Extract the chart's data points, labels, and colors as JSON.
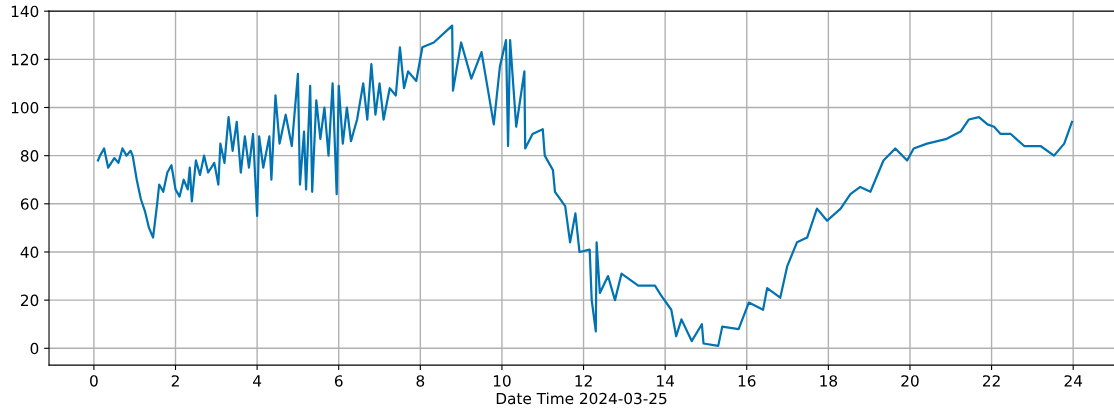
{
  "chart_data": {
    "type": "line",
    "xlabel": "Date Time 2024-03-25",
    "xlim": [
      -1.1,
      25
    ],
    "xticks": [
      0,
      2,
      4,
      6,
      8,
      10,
      12,
      14,
      16,
      18,
      20,
      22,
      24
    ],
    "ylim": [
      -7,
      140
    ],
    "yticks": [
      0,
      20,
      40,
      60,
      80,
      100,
      120,
      140
    ],
    "grid": true,
    "marker": "none",
    "line_style": "solid",
    "series": [
      {
        "color": "#0173b2",
        "x": [
          0.1,
          0.15,
          0.25,
          0.35,
          0.5,
          0.6,
          0.7,
          0.8,
          0.9,
          0.95,
          1.05,
          1.15,
          1.25,
          1.35,
          1.45,
          1.55,
          1.6,
          1.7,
          1.8,
          1.9,
          2.0,
          2.1,
          2.2,
          2.3,
          2.35,
          2.4,
          2.5,
          2.6,
          2.7,
          2.8,
          2.95,
          3.05,
          3.1,
          3.2,
          3.3,
          3.4,
          3.5,
          3.6,
          3.7,
          3.8,
          3.9,
          4.0,
          4.05,
          4.15,
          4.3,
          4.35,
          4.45,
          4.55,
          4.7,
          4.85,
          5.0,
          5.05,
          5.15,
          5.2,
          5.3,
          5.35,
          5.45,
          5.55,
          5.65,
          5.75,
          5.85,
          5.95,
          6.0,
          6.1,
          6.2,
          6.3,
          6.45,
          6.6,
          6.7,
          6.8,
          6.9,
          7.0,
          7.1,
          7.25,
          7.4,
          7.5,
          7.6,
          7.7,
          7.9,
          8.05,
          8.33,
          8.78,
          8.8,
          9.0,
          9.25,
          9.5,
          9.8,
          9.95,
          10.1,
          10.15,
          10.2,
          10.35,
          10.55,
          10.57,
          10.75,
          11.0,
          11.05,
          11.25,
          11.3,
          11.55,
          11.67,
          11.8,
          11.9,
          12.15,
          12.2,
          12.3,
          12.32,
          12.4,
          12.6,
          12.77,
          12.93,
          13.34,
          13.75,
          13.9,
          14.15,
          14.27,
          14.4,
          14.65,
          14.9,
          14.94,
          15.3,
          15.4,
          15.8,
          16.05,
          16.4,
          16.5,
          16.82,
          16.99,
          17.23,
          17.48,
          17.72,
          17.97,
          18.3,
          18.54,
          18.78,
          19.03,
          19.35,
          19.64,
          19.93,
          20.09,
          20.42,
          20.9,
          21.24,
          21.44,
          21.69,
          21.9,
          22.06,
          22.22,
          22.47,
          22.8,
          23.2,
          23.53,
          23.78,
          23.97
        ],
        "values": [
          78,
          80,
          83,
          75,
          79,
          77,
          83,
          80,
          82,
          80,
          70,
          62,
          57,
          50,
          46,
          60,
          68,
          65,
          73,
          76,
          66,
          63,
          70,
          66,
          75,
          61,
          78,
          72,
          80,
          73,
          77,
          68,
          85,
          77,
          96,
          82,
          94,
          73,
          88,
          75,
          89,
          55,
          88,
          75,
          88,
          70,
          105,
          85,
          97,
          84,
          114,
          68,
          90,
          66,
          109,
          65,
          103,
          87,
          100,
          80,
          110,
          64,
          109,
          85,
          100,
          86,
          95,
          110,
          95,
          118,
          97,
          110,
          95,
          108,
          105,
          125,
          108,
          115,
          111,
          125,
          127,
          134,
          107,
          127,
          112,
          123,
          93,
          117,
          128,
          84,
          128,
          92,
          115,
          83,
          89,
          91,
          80,
          74,
          65,
          59,
          44,
          56,
          40,
          41,
          20,
          7,
          44,
          23,
          30,
          20,
          31,
          26,
          26,
          22,
          16,
          5,
          12,
          3,
          10,
          2,
          1,
          9,
          8,
          19,
          16,
          25,
          21,
          34,
          44,
          46,
          58,
          53,
          58,
          64,
          67,
          65,
          78,
          83,
          78,
          83,
          85,
          87,
          90,
          95,
          96,
          93,
          92,
          89,
          89,
          84,
          84,
          80,
          85,
          94
        ]
      }
    ]
  }
}
